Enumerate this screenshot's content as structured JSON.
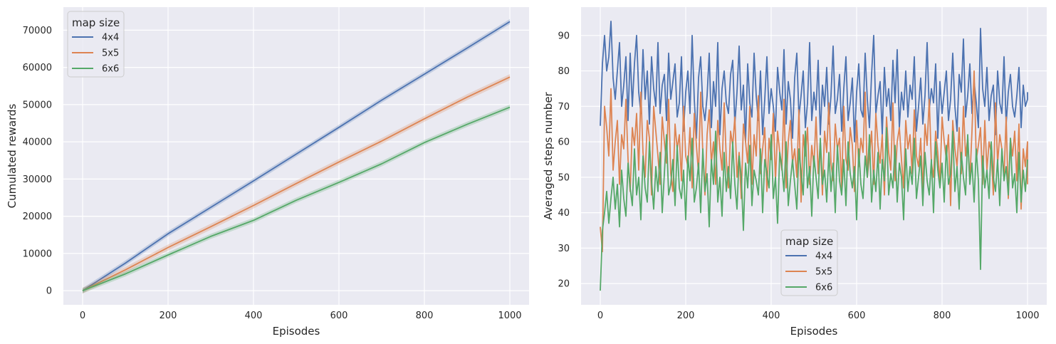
{
  "chart_data": [
    {
      "type": "line",
      "xlabel": "Episodes",
      "ylabel": "Cumulated rewards",
      "xlim": [
        -45,
        1045
      ],
      "ylim": [
        -3800,
        76200
      ],
      "xticks": [
        0,
        200,
        400,
        600,
        800,
        1000
      ],
      "yticks": [
        0,
        10000,
        20000,
        30000,
        40000,
        50000,
        60000,
        70000
      ],
      "grid": true,
      "legend": {
        "title": "map size",
        "position": "top-left"
      },
      "x": [
        0,
        100,
        200,
        300,
        400,
        500,
        600,
        700,
        800,
        900,
        1000
      ],
      "series": [
        {
          "name": "4x4",
          "color": "#4c72b0",
          "band": 700,
          "values": [
            0,
            7400,
            15300,
            22400,
            29500,
            36700,
            43900,
            51200,
            58200,
            65200,
            72300
          ]
        },
        {
          "name": "5x5",
          "color": "#dd8452",
          "band": 800,
          "values": [
            0,
            5600,
            11600,
            17200,
            22900,
            28800,
            34600,
            40200,
            46200,
            52000,
            57400
          ]
        },
        {
          "name": "6x6",
          "color": "#55a868",
          "band": 700,
          "values": [
            0,
            4500,
            9600,
            14600,
            18900,
            24300,
            29100,
            34100,
            39800,
            44700,
            49300
          ]
        }
      ]
    },
    {
      "type": "line",
      "xlabel": "Episodes",
      "ylabel": "Averaged steps number",
      "xlim": [
        -45,
        1045
      ],
      "ylim": [
        14,
        98
      ],
      "xticks": [
        0,
        200,
        400,
        600,
        800,
        1000
      ],
      "yticks": [
        20,
        30,
        40,
        50,
        60,
        70,
        80,
        90
      ],
      "grid": true,
      "legend": {
        "title": "map size",
        "position": "lower-center"
      },
      "x_step": 5,
      "series": [
        {
          "name": "4x4",
          "color": "#4c72b0",
          "values": [
            64.5,
            82,
            90,
            80,
            84,
            94,
            78,
            72,
            80,
            88,
            70,
            76,
            84,
            66,
            85,
            70,
            82,
            90,
            74,
            68,
            86,
            72,
            80,
            65,
            84,
            75,
            70,
            88,
            68,
            76,
            79,
            66,
            85,
            72,
            77,
            82,
            67,
            71,
            84,
            63,
            74,
            80,
            68,
            90,
            72,
            61,
            78,
            84,
            70,
            66,
            73,
            85,
            64,
            77,
            70,
            88,
            62,
            75,
            80,
            71,
            68,
            79,
            83,
            65,
            74,
            87,
            69,
            76,
            60,
            82,
            71,
            67,
            85,
            73,
            66,
            80,
            62,
            72,
            84,
            68,
            75,
            70,
            63,
            81,
            74,
            69,
            86,
            65,
            77,
            72,
            61,
            78,
            85,
            67,
            73,
            80,
            64,
            71,
            88,
            66,
            74,
            69,
            83,
            62,
            76,
            70,
            81,
            65,
            73,
            87,
            68,
            72,
            79,
            63,
            75,
            84,
            66,
            71,
            78,
            60,
            74,
            82,
            69,
            67,
            85,
            72,
            64,
            79,
            90,
            68,
            73,
            77,
            62,
            81,
            70,
            75,
            66,
            83,
            71,
            86,
            64,
            74,
            69,
            80,
            67,
            76,
            72,
            84,
            63,
            70,
            78,
            65,
            73,
            88,
            69,
            75,
            71,
            82,
            61,
            77,
            68,
            74,
            80,
            66,
            72,
            85,
            70,
            63,
            79,
            74,
            89,
            67,
            73,
            82,
            68,
            77,
            71,
            64,
            92,
            75,
            70,
            81,
            66,
            73,
            76,
            62,
            80,
            71,
            68,
            84,
            65,
            74,
            79,
            70,
            67,
            73,
            81,
            64,
            76,
            70,
            72,
            74
          ]
        },
        {
          "name": "5x5",
          "color": "#dd8452",
          "values": [
            36,
            29,
            70,
            64,
            56,
            75,
            52,
            60,
            66,
            48,
            62,
            58,
            72,
            55,
            46,
            64,
            59,
            68,
            52,
            74,
            57,
            50,
            66,
            61,
            45,
            70,
            63,
            56,
            48,
            67,
            60,
            54,
            72,
            51,
            46,
            65,
            58,
            62,
            49,
            70,
            56,
            53,
            64,
            47,
            68,
            59,
            51,
            74,
            57,
            45,
            62,
            69,
            54,
            60,
            48,
            66,
            58,
            52,
            71,
            55,
            47,
            63,
            59,
            67,
            50,
            57,
            44,
            65,
            60,
            54,
            70,
            48,
            62,
            56,
            73,
            51,
            58,
            64,
            46,
            61,
            55,
            68,
            49,
            63,
            57,
            52,
            72,
            47,
            60,
            66,
            54,
            58,
            50,
            69,
            43,
            62,
            56,
            64,
            48,
            59,
            53,
            67,
            51,
            60,
            45,
            63,
            57,
            71,
            54,
            49,
            65,
            58,
            61,
            47,
            70,
            55,
            52,
            64,
            59,
            46,
            66,
            53,
            61,
            57,
            74,
            50,
            56,
            63,
            48,
            68,
            59,
            54,
            62,
            45,
            67,
            57,
            52,
            71,
            49,
            60,
            64,
            55,
            47,
            66,
            58,
            62,
            51,
            69,
            56,
            53,
            61,
            46,
            65,
            59,
            72,
            54,
            50,
            63,
            57,
            48,
            67,
            60,
            55,
            62,
            42,
            66,
            58,
            53,
            64,
            51,
            70,
            56,
            61,
            49,
            63,
            80,
            55,
            59,
            64,
            48,
            66,
            52,
            60,
            57,
            45,
            71,
            54,
            62,
            58,
            50,
            67,
            44,
            61,
            56,
            63,
            49,
            65,
            41,
            58,
            53,
            60,
            48
          ]
        },
        {
          "name": "6x6",
          "color": "#55a868",
          "values": [
            18,
            35,
            40,
            46,
            37,
            44,
            50,
            41,
            48,
            36,
            52,
            44,
            39,
            54,
            47,
            42,
            58,
            45,
            50,
            38,
            56,
            47,
            43,
            60,
            49,
            41,
            53,
            46,
            57,
            40,
            51,
            62,
            45,
            48,
            55,
            42,
            59,
            47,
            44,
            52,
            38,
            56,
            49,
            61,
            43,
            47,
            54,
            40,
            58,
            46,
            51,
            36,
            55,
            48,
            63,
            43,
            50,
            39,
            57,
            46,
            53,
            44,
            60,
            48,
            41,
            56,
            50,
            35,
            54,
            47,
            59,
            42,
            52,
            49,
            45,
            58,
            40,
            55,
            51,
            47,
            62,
            44,
            50,
            37,
            57,
            53,
            46,
            60,
            42,
            49,
            55,
            48,
            41,
            58,
            51,
            45,
            63,
            47,
            53,
            39,
            56,
            50,
            44,
            61,
            48,
            52,
            43,
            57,
            46,
            54,
            40,
            59,
            49,
            45,
            55,
            42,
            60,
            51,
            47,
            53,
            38,
            58,
            48,
            44,
            56,
            50,
            62,
            43,
            52,
            46,
            57,
            41,
            55,
            49,
            64,
            45,
            51,
            47,
            59,
            43,
            54,
            50,
            38,
            58,
            46,
            53,
            48,
            61,
            44,
            50,
            56,
            42,
            57,
            49,
            45,
            55,
            40,
            60,
            52,
            47,
            54,
            43,
            59,
            48,
            51,
            63,
            46,
            53,
            41,
            57,
            50,
            45,
            62,
            48,
            54,
            43,
            58,
            49,
            24,
            56,
            47,
            52,
            44,
            60,
            50,
            46,
            55,
            42,
            58,
            49,
            53,
            45,
            61,
            47,
            51,
            40,
            57,
            43,
            52,
            46,
            55
          ]
        }
      ]
    }
  ]
}
